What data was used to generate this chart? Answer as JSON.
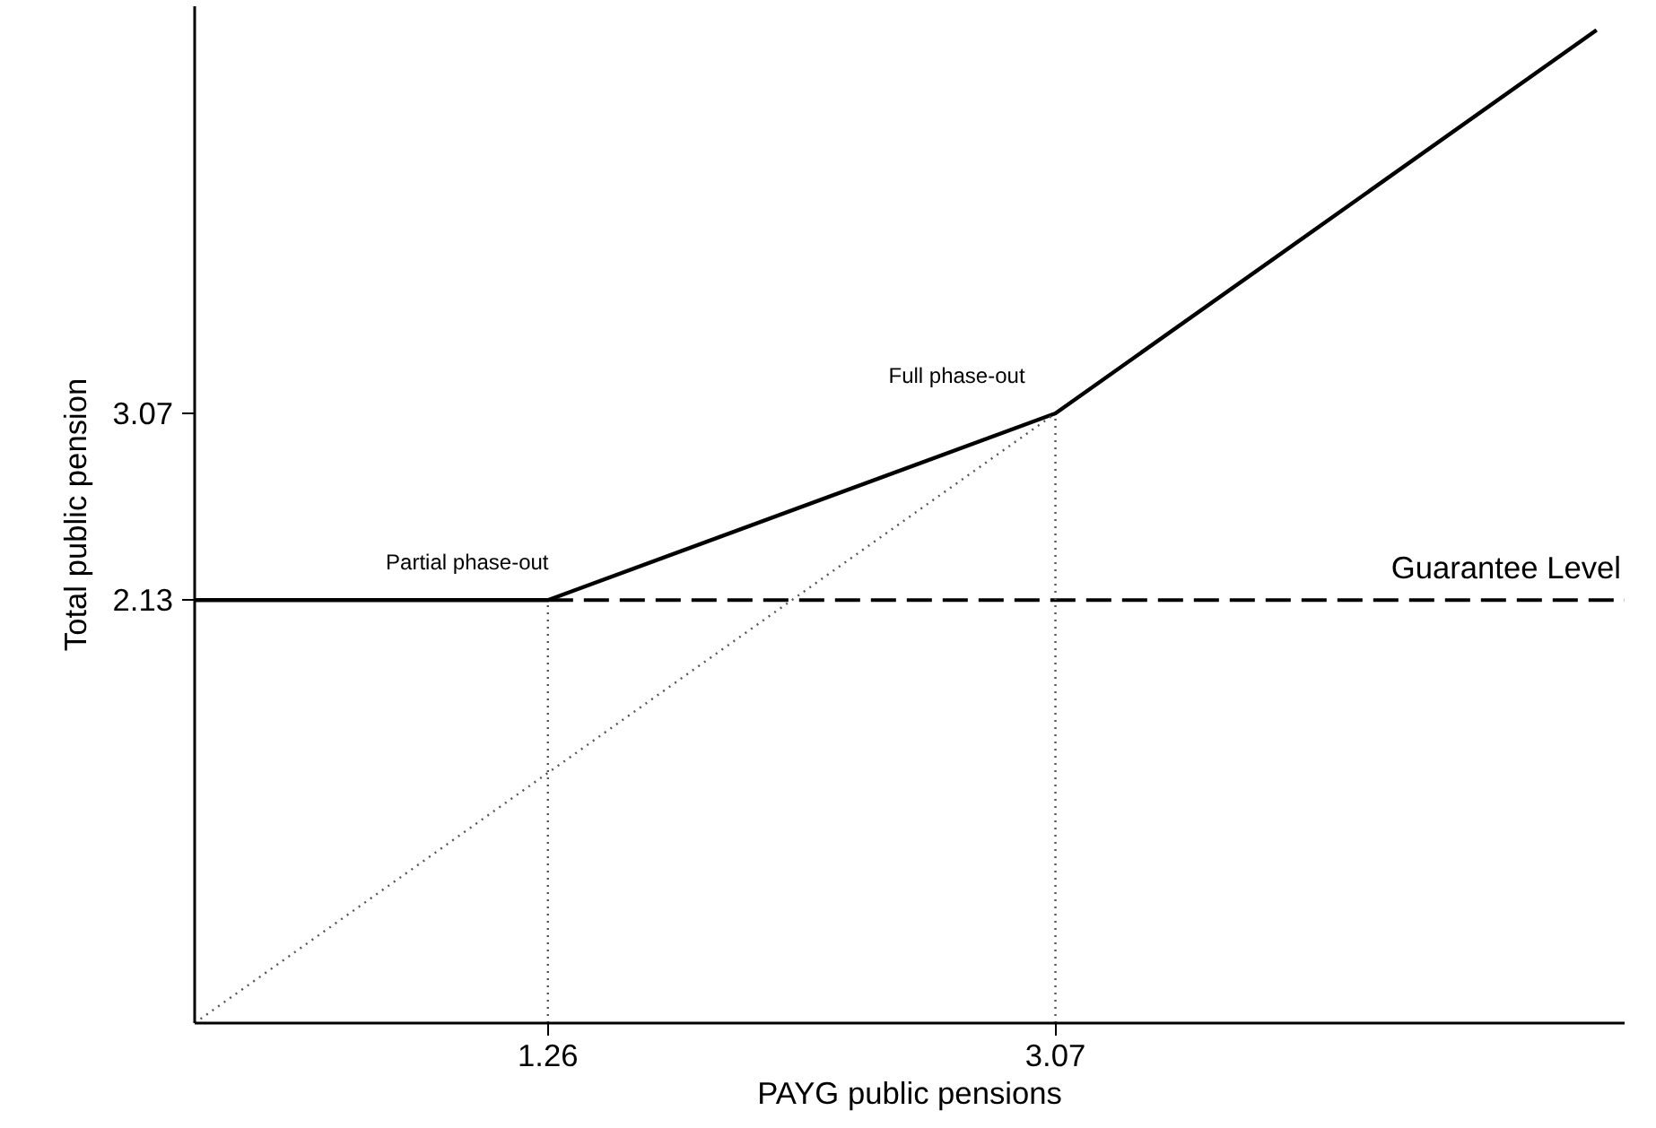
{
  "chart_data": {
    "type": "line",
    "xlabel": "PAYG public pensions",
    "ylabel": "Total public pension",
    "xlim": [
      0,
      5.1
    ],
    "ylim": [
      0,
      5.12
    ],
    "xticks": [
      1.26,
      3.07
    ],
    "yticks": [
      2.13,
      3.07
    ],
    "grid": false,
    "series": [
      {
        "x": [
          0,
          1.26,
          3.07,
          5
        ],
        "values": [
          2.13,
          2.13,
          3.07,
          5
        ],
        "color": "#000000",
        "line_style": "solid"
      },
      {
        "name": "Guarantee Level",
        "x": [
          1.26,
          5.1
        ],
        "values": [
          2.13,
          2.13
        ],
        "color": "#000000",
        "line_style": "dashed"
      },
      {
        "x": [
          0,
          3.07
        ],
        "values": [
          0,
          3.07
        ],
        "color": "#555555",
        "line_style": "dotted"
      },
      {
        "x": [
          1.26,
          1.26
        ],
        "values": [
          0,
          2.13
        ],
        "color": "#555555",
        "line_style": "dotted"
      },
      {
        "x": [
          3.07,
          3.07
        ],
        "values": [
          0,
          3.07
        ],
        "color": "#555555",
        "line_style": "dotted"
      }
    ],
    "annotations": [
      {
        "text": "Partial phase-out",
        "x": 1.26,
        "y": 2.13
      },
      {
        "text": "Full phase-out",
        "x": 3.07,
        "y": 3.07
      }
    ]
  }
}
